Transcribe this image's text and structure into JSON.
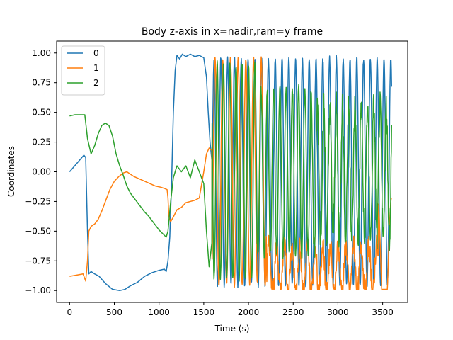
{
  "chart_data": {
    "type": "line",
    "title": "Body z-axis in x=nadir,ram=y frame",
    "xlabel": "Time (s)",
    "ylabel": "Coordinates",
    "xlim": [
      -145,
      3780
    ],
    "ylim": [
      -1.1,
      1.1
    ],
    "xticks": [
      0,
      500,
      1000,
      1500,
      2000,
      2500,
      3000,
      3500
    ],
    "yticks": [
      -1.0,
      -0.75,
      -0.5,
      -0.25,
      0.0,
      0.25,
      0.5,
      0.75,
      1.0
    ],
    "ytick_labels": [
      "−1.00",
      "−0.75",
      "−0.50",
      "−0.25",
      "0.00",
      "0.25",
      "0.50",
      "0.75",
      "1.00"
    ],
    "grid": false,
    "legend_position": "top-left",
    "series": [
      {
        "name": "0",
        "color": "#1f77b4",
        "x": [
          0,
          80,
          160,
          180,
          200,
          215,
          240,
          280,
          330,
          400,
          480,
          560,
          620,
          680,
          760,
          840,
          920,
          1000,
          1060,
          1080,
          1100,
          1120,
          1140,
          1160,
          1180,
          1200,
          1230,
          1260,
          1300,
          1350,
          1400,
          1450,
          1500,
          1530,
          1550,
          1570,
          1590
        ],
        "y": [
          0.0,
          0.07,
          0.14,
          0.12,
          -0.5,
          -0.86,
          -0.84,
          -0.86,
          -0.88,
          -0.94,
          -0.99,
          -1.0,
          -0.99,
          -0.96,
          -0.93,
          -0.88,
          -0.85,
          -0.83,
          -0.82,
          -0.84,
          -0.75,
          -0.55,
          -0.1,
          0.5,
          0.85,
          0.98,
          0.95,
          0.99,
          0.97,
          0.99,
          0.97,
          0.98,
          0.96,
          0.8,
          0.5,
          0.25,
          0.1
        ]
      },
      {
        "name": "1",
        "color": "#ff7f0e",
        "x": [
          0,
          80,
          150,
          180,
          200,
          215,
          240,
          280,
          320,
          360,
          400,
          450,
          500,
          550,
          600,
          640,
          680,
          720,
          780,
          840,
          900,
          960,
          1020,
          1060,
          1090,
          1100,
          1110,
          1130,
          1160,
          1200,
          1250,
          1300,
          1350,
          1400,
          1450,
          1500,
          1530,
          1560,
          1590
        ],
        "y": [
          -0.88,
          -0.87,
          -0.86,
          -0.92,
          -0.75,
          -0.5,
          -0.46,
          -0.44,
          -0.4,
          -0.33,
          -0.25,
          -0.15,
          -0.08,
          -0.04,
          -0.01,
          0.0,
          -0.02,
          -0.04,
          -0.06,
          -0.08,
          -0.1,
          -0.12,
          -0.13,
          -0.14,
          -0.15,
          -0.22,
          -0.38,
          -0.42,
          -0.38,
          -0.32,
          -0.3,
          -0.26,
          -0.25,
          -0.24,
          -0.22,
          0.0,
          0.15,
          0.2,
          0.18
        ]
      },
      {
        "name": "2",
        "color": "#2ca02c",
        "x": [
          0,
          60,
          120,
          170,
          200,
          240,
          280,
          320,
          360,
          400,
          440,
          480,
          520,
          560,
          600,
          640,
          680,
          720,
          760,
          800,
          840,
          880,
          920,
          960,
          1000,
          1040,
          1080,
          1100,
          1130,
          1160,
          1200,
          1250,
          1300,
          1350,
          1400,
          1450,
          1500,
          1530,
          1560,
          1590
        ],
        "y": [
          0.47,
          0.48,
          0.48,
          0.48,
          0.28,
          0.15,
          0.22,
          0.32,
          0.39,
          0.41,
          0.39,
          0.3,
          0.15,
          0.05,
          -0.03,
          -0.12,
          -0.18,
          -0.22,
          -0.26,
          -0.3,
          -0.34,
          -0.37,
          -0.41,
          -0.45,
          -0.49,
          -0.52,
          -0.55,
          -0.5,
          -0.25,
          -0.05,
          0.05,
          0.0,
          0.05,
          -0.05,
          0.1,
          0.0,
          -0.1,
          -0.5,
          -0.8,
          -0.6
        ]
      }
    ],
    "osc_region": {
      "x_start": 1590,
      "x_end": 3600,
      "description_free": true
    }
  }
}
